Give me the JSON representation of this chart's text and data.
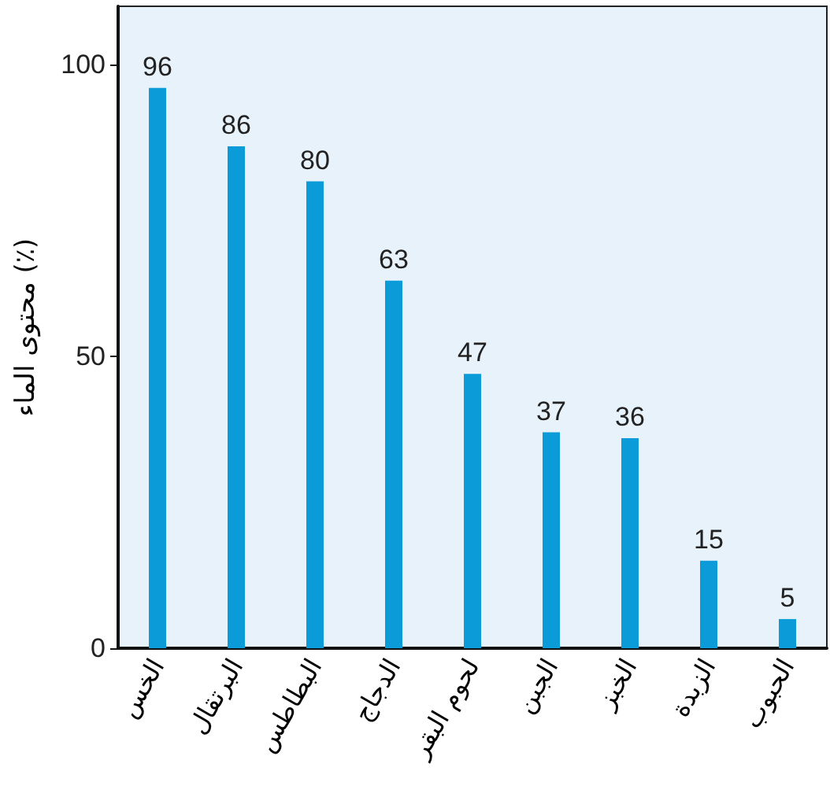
{
  "chart_data": {
    "type": "bar",
    "ylabel": "محتوى الماء (٪)",
    "categories": [
      "الخس",
      "البرتقال",
      "البطاطس",
      "الدجاج",
      "لحوم البقر",
      "الجبن",
      "الخبز",
      "الزبدة",
      "الحبوب"
    ],
    "values": [
      96,
      86,
      80,
      63,
      47,
      37,
      36,
      15,
      5
    ],
    "color": "#0a9bd8",
    "ylim": [
      0,
      110
    ],
    "yticks": [
      0,
      50,
      100
    ],
    "grid": false,
    "data_labels": true
  }
}
